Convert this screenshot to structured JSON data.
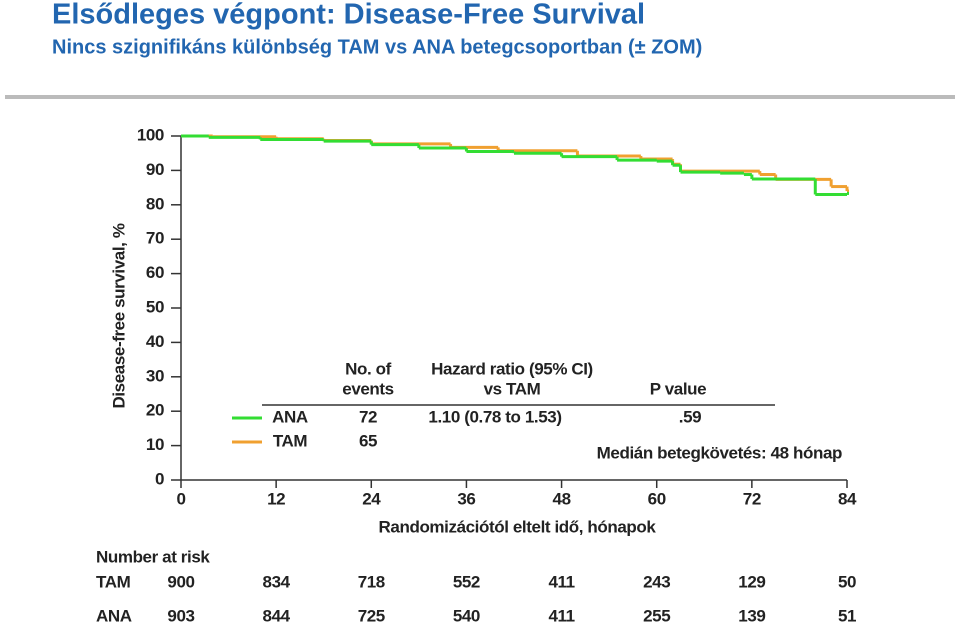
{
  "chart_data": {
    "type": "km-step",
    "title": "Elsődleges végpont: Disease-Free Survival",
    "subtitle": "Nincs szignifikáns különbség TAM vs ANA betegcsoportban (± ZOM)",
    "ylabel": "Disease-free survival, %",
    "xlabel": "Randomizációtól eltelt idő, hónapok",
    "annotation": "Medián  betegkövetés: 48 hónap",
    "xlim": [
      0,
      84
    ],
    "xticks": [
      0,
      12,
      24,
      36,
      48,
      60,
      72,
      84
    ],
    "ylim": [
      0,
      100
    ],
    "yticks": [
      0,
      10,
      20,
      30,
      40,
      50,
      60,
      70,
      80,
      90,
      100
    ],
    "series": [
      {
        "name": "ANA",
        "color": "#33dd33",
        "x": [
          0,
          3.5,
          10,
          18,
          24,
          30,
          36,
          42,
          48,
          55,
          60,
          62,
          63,
          68,
          71,
          72,
          78,
          80,
          84
        ],
        "values": [
          100,
          99.6,
          99,
          98.5,
          97.5,
          96.5,
          95.5,
          95,
          94,
          93,
          92.7,
          91.5,
          89.5,
          89.2,
          88.8,
          87.5,
          87.5,
          83,
          83.3
        ]
      },
      {
        "name": "TAM",
        "color": "#f0a030",
        "x": [
          0,
          4,
          12,
          18,
          24,
          34,
          40,
          50,
          58,
          62,
          63,
          73,
          75,
          82,
          84
        ],
        "values": [
          100,
          99.8,
          99.2,
          98.7,
          97.7,
          96.7,
          95.7,
          94.2,
          93.3,
          91.8,
          89.8,
          88.8,
          87.4,
          85.3,
          84
        ]
      }
    ],
    "legend_table": {
      "events_header": [
        "No. of",
        "events"
      ],
      "hr_header": [
        "Hazard ratio (95% CI)",
        "vs TAM"
      ],
      "p_header": "P value",
      "rows": [
        {
          "name": "ANA",
          "events": "72",
          "hr": "1.10 (0.78 to 1.53)",
          "p": ".59"
        },
        {
          "name": "TAM",
          "events": "65"
        }
      ]
    },
    "risk_table": {
      "title": "Number at risk",
      "rows": [
        {
          "name": "TAM",
          "values": [
            "900",
            "834",
            "718",
            "552",
            "411",
            "243",
            "129",
            "50"
          ]
        },
        {
          "name": "ANA",
          "values": [
            "903",
            "844",
            "725",
            "540",
            "411",
            "255",
            "139",
            "51"
          ]
        }
      ]
    }
  }
}
